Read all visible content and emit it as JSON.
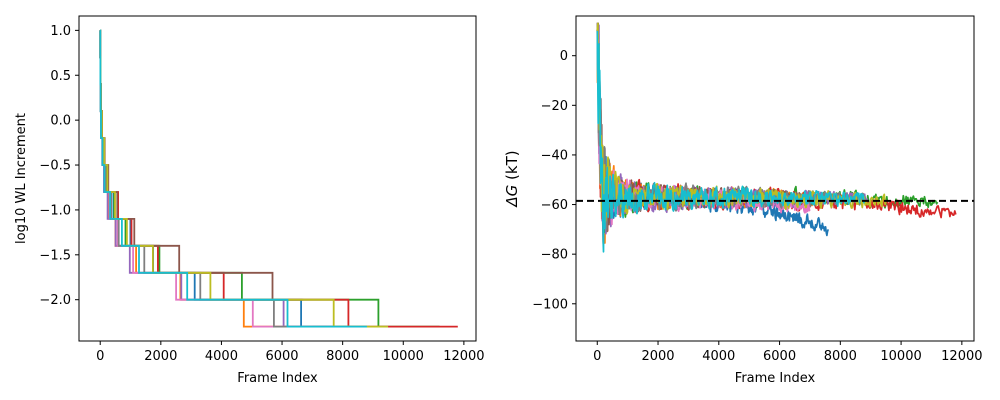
{
  "chart_data": [
    {
      "type": "line",
      "step": true,
      "xlabel": "Frame Index",
      "ylabel": "log10 WL Increment",
      "xlim": [
        -700,
        12400
      ],
      "ylim": [
        -2.46,
        1.16
      ],
      "xticks": [
        0,
        2000,
        4000,
        6000,
        8000,
        10000,
        12000
      ],
      "xtick_labels": [
        "0",
        "2000",
        "4000",
        "6000",
        "8000",
        "10000",
        "12000"
      ],
      "yticks": [
        1.0,
        0.5,
        0.0,
        -0.5,
        -1.0,
        -1.5,
        -2.0
      ],
      "ytick_labels": [
        "1.0",
        "0.5",
        "0.0",
        "−0.5",
        "−1.0",
        "−1.5",
        "−2.0"
      ],
      "grid": false,
      "series": [
        {
          "color": "#1f77b4",
          "end_x": 8300,
          "final_y": -2.2
        },
        {
          "color": "#ff7f0e",
          "end_x": 7500,
          "final_y": -1.9
        },
        {
          "color": "#2ca02c",
          "end_x": 11200,
          "final_y": -2.3
        },
        {
          "color": "#d62728",
          "end_x": 11800,
          "final_y": -2.2
        },
        {
          "color": "#9467bd",
          "end_x": 8900,
          "final_y": -2.2
        },
        {
          "color": "#8c564b",
          "end_x": 6700,
          "final_y": -2.0
        },
        {
          "color": "#e377c2",
          "end_x": 7000,
          "final_y": -1.8
        },
        {
          "color": "#7f7f7f",
          "end_x": 8800,
          "final_y": -2.2
        },
        {
          "color": "#bcbd22",
          "end_x": 9500,
          "final_y": -2.1
        },
        {
          "color": "#17becf",
          "end_x": 8800,
          "final_y": -1.9
        }
      ]
    },
    {
      "type": "line",
      "xlabel": "Frame Index",
      "ylabel_symbol": "ΔG",
      "ylabel_unit": " (kT)",
      "xlim": [
        -700,
        12400
      ],
      "ylim": [
        -115,
        16
      ],
      "xticks": [
        0,
        2000,
        4000,
        6000,
        8000,
        10000,
        12000
      ],
      "xtick_labels": [
        "0",
        "2000",
        "4000",
        "6000",
        "8000",
        "10000",
        "12000"
      ],
      "yticks": [
        0,
        -20,
        -40,
        -60,
        -80,
        -100
      ],
      "ytick_labels": [
        "0",
        "−20",
        "−40",
        "−60",
        "−80",
        "−100"
      ],
      "grid": false,
      "reference_line": {
        "y": -58.5,
        "style": "dashed",
        "color": "#000000"
      },
      "series": [
        {
          "color": "#1f77b4",
          "end_x": 7600,
          "final_y": -70
        },
        {
          "color": "#ff7f0e",
          "end_x": 7500,
          "final_y": -58
        },
        {
          "color": "#2ca02c",
          "end_x": 11200,
          "final_y": -59
        },
        {
          "color": "#d62728",
          "end_x": 11800,
          "final_y": -64
        },
        {
          "color": "#9467bd",
          "end_x": 8900,
          "final_y": -58
        },
        {
          "color": "#8c564b",
          "end_x": 6700,
          "final_y": -57
        },
        {
          "color": "#e377c2",
          "end_x": 7000,
          "final_y": -62
        },
        {
          "color": "#7f7f7f",
          "end_x": 8800,
          "final_y": -58
        },
        {
          "color": "#bcbd22",
          "end_x": 9500,
          "final_y": -59
        },
        {
          "color": "#17becf",
          "end_x": 8800,
          "final_y": -58
        }
      ]
    }
  ]
}
